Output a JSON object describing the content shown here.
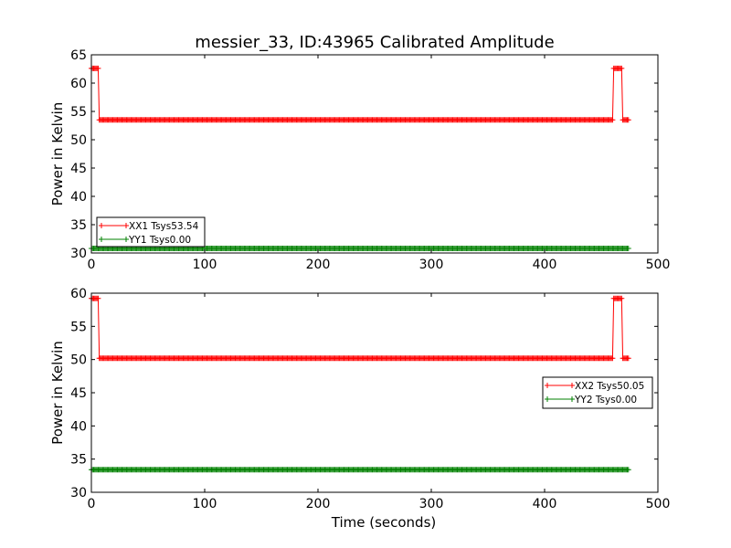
{
  "title": "messier_33, ID:43965 Calibrated Amplitude",
  "chart_data": [
    {
      "type": "line",
      "ylabel": "Power in Kelvin",
      "xlabel": "",
      "xlim": [
        0,
        500
      ],
      "ylim": [
        30,
        65
      ],
      "xticks": [
        0,
        100,
        200,
        300,
        400,
        500
      ],
      "yticks": [
        30,
        35,
        40,
        45,
        50,
        55,
        60,
        65
      ],
      "legend": "lower-left",
      "series": [
        {
          "name": "XX1 Tsys53.54",
          "color": "#ff0000",
          "segments": [
            {
              "x": [
                0,
                6
              ],
              "y": 62.6
            },
            {
              "x": [
                7,
                460
              ],
              "y": 53.5
            },
            {
              "x": [
                461,
                468
              ],
              "y": 62.6
            },
            {
              "x": [
                469,
                474
              ],
              "y": 53.5
            }
          ]
        },
        {
          "name": "YY1 Tsys0.00",
          "color": "#008000",
          "segments": [
            {
              "x": [
                0,
                474
              ],
              "y": 30.8
            }
          ]
        }
      ]
    },
    {
      "type": "line",
      "ylabel": "Power in Kelvin",
      "xlabel": "Time (seconds)",
      "xlim": [
        0,
        500
      ],
      "ylim": [
        30,
        60
      ],
      "xticks": [
        0,
        100,
        200,
        300,
        400,
        500
      ],
      "yticks": [
        30,
        35,
        40,
        45,
        50,
        55,
        60
      ],
      "legend": "center-right",
      "series": [
        {
          "name": "XX2 Tsys50.05",
          "color": "#ff0000",
          "segments": [
            {
              "x": [
                0,
                6
              ],
              "y": 59.2
            },
            {
              "x": [
                7,
                460
              ],
              "y": 50.2
            },
            {
              "x": [
                461,
                468
              ],
              "y": 59.2
            },
            {
              "x": [
                469,
                474
              ],
              "y": 50.2
            }
          ]
        },
        {
          "name": "YY2 Tsys0.00",
          "color": "#008000",
          "segments": [
            {
              "x": [
                0,
                474
              ],
              "y": 33.4
            }
          ]
        }
      ]
    }
  ]
}
